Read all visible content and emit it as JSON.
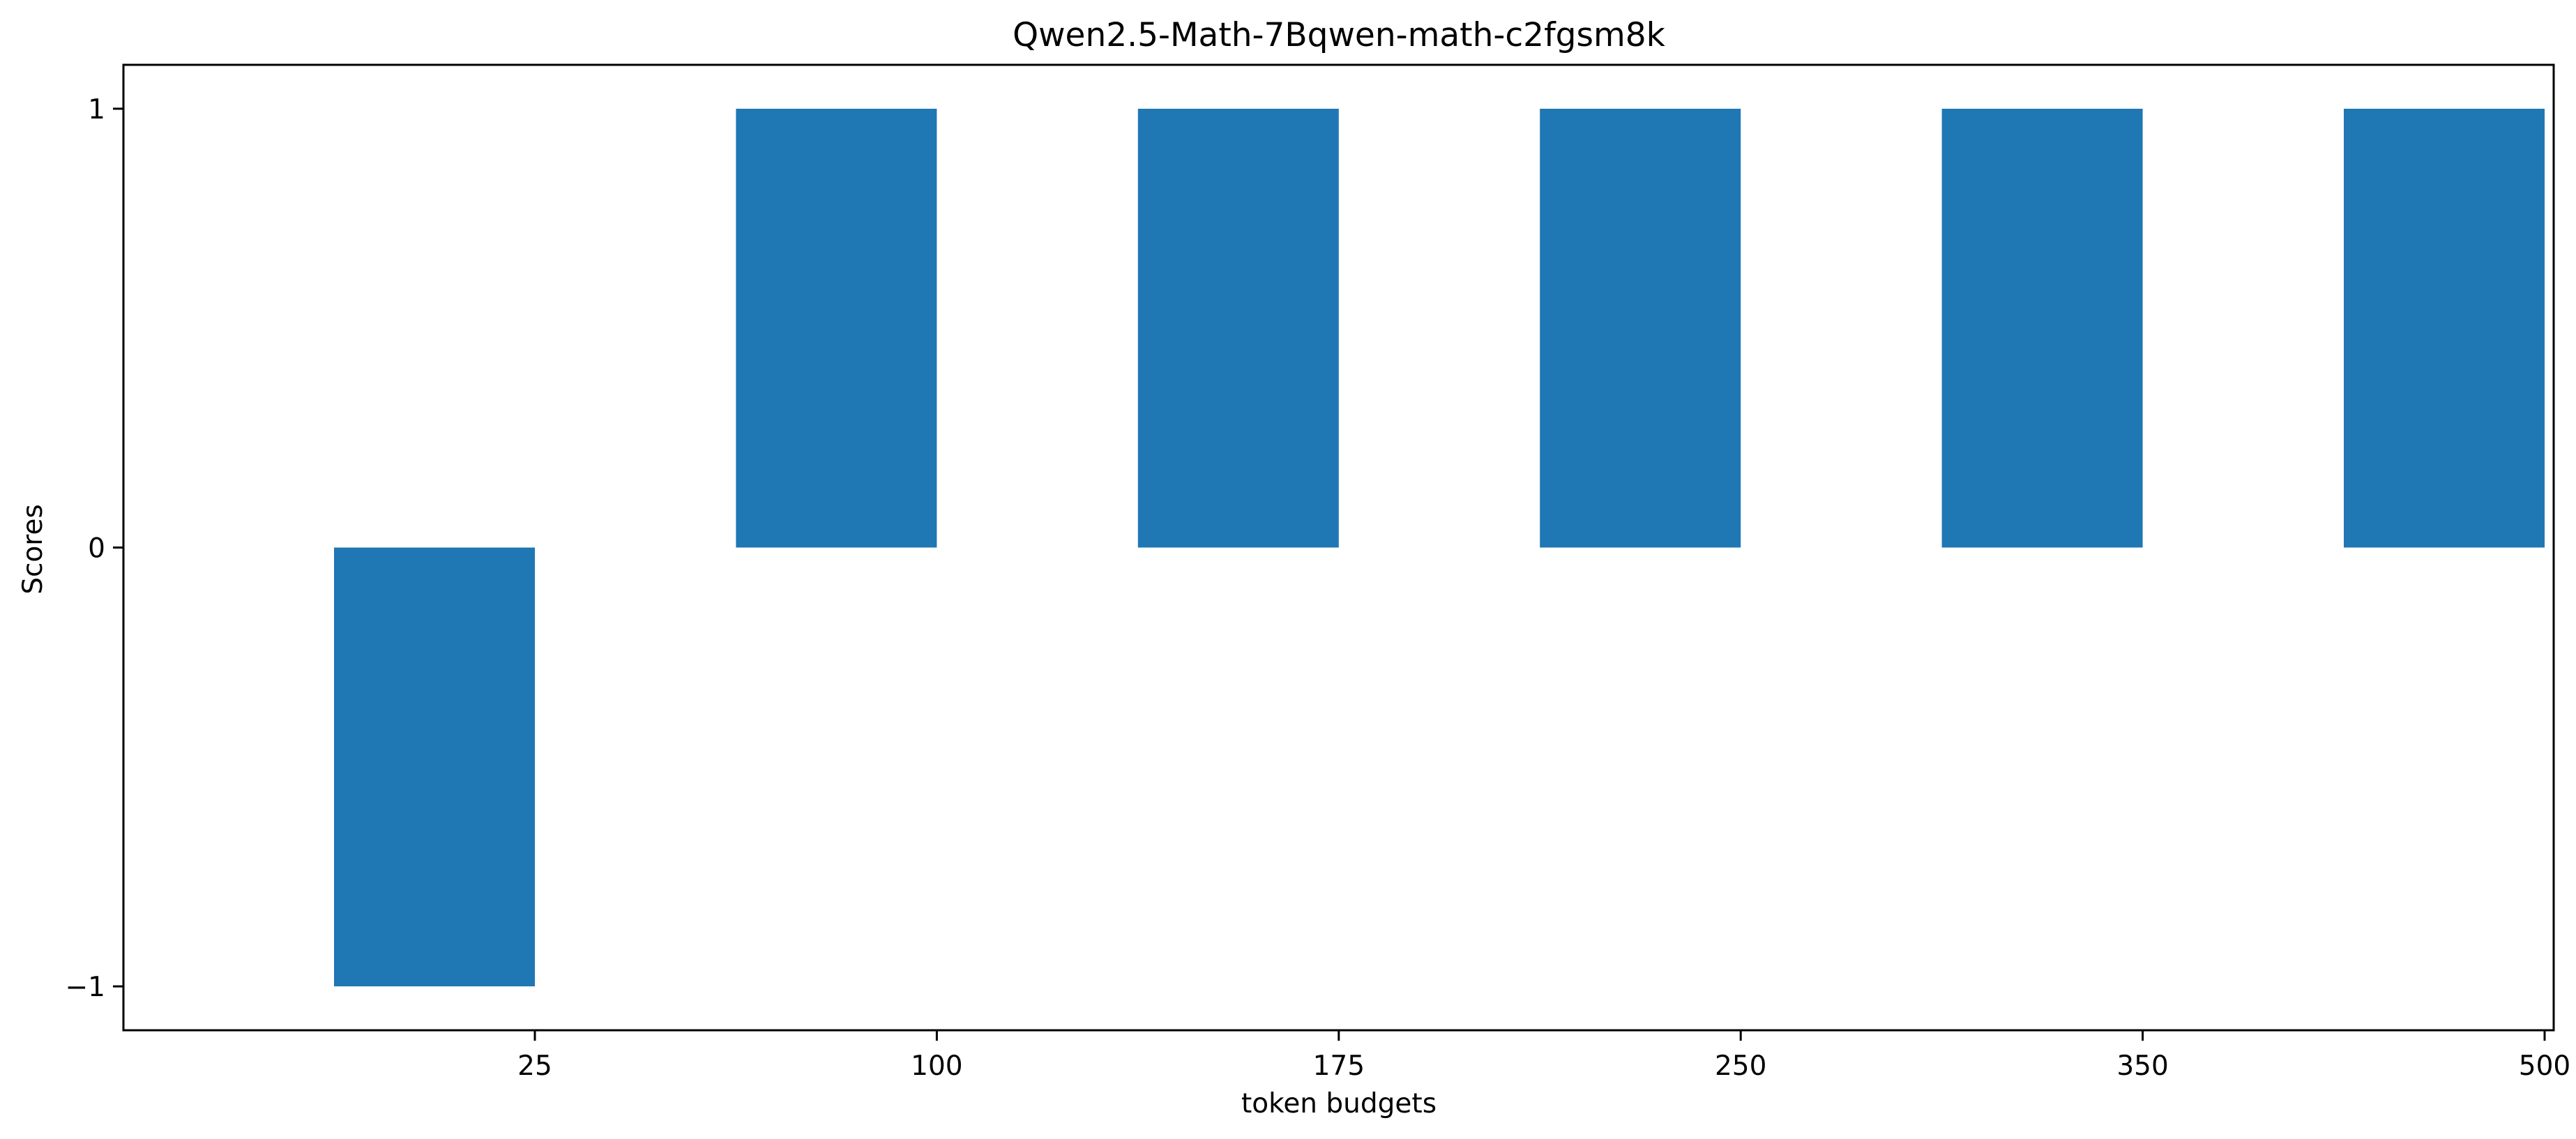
{
  "chart_data": {
    "type": "bar",
    "title": "Qwen2.5-Math-7Bqwen-math-c2fgsm8k",
    "xlabel": "token budgets",
    "ylabel": "Scores",
    "categories": [
      "25",
      "100",
      "175",
      "250",
      "350",
      "500"
    ],
    "values": [
      -1,
      1,
      1,
      1,
      1,
      1
    ],
    "ylim": [
      -1.1,
      1.1
    ],
    "yticks": [
      -1,
      0,
      1
    ],
    "ytick_labels": [
      "−1",
      "0",
      "1"
    ],
    "grid": false,
    "legend": "none",
    "bar_color": "#1f77b4"
  }
}
